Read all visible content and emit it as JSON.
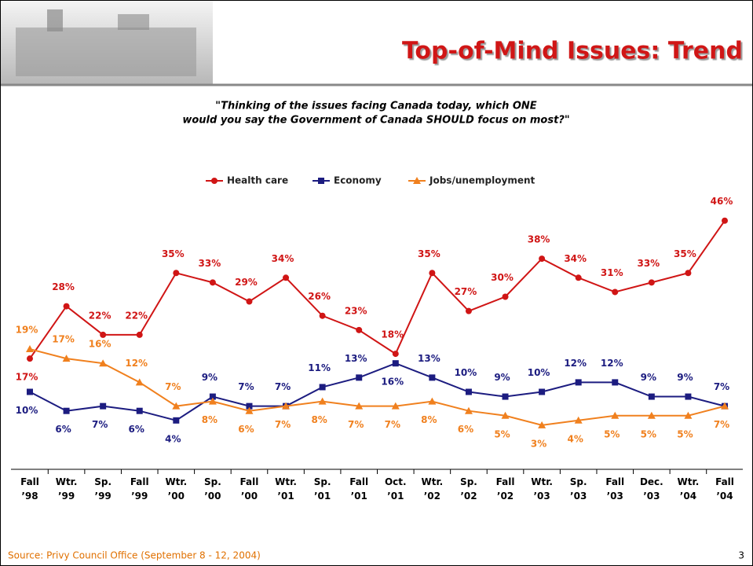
{
  "chart_data": {
    "type": "line",
    "title": "Top-of-Mind Issues: Trend",
    "subtitle": [
      "\"Thinking of the issues facing Canada today, which ONE",
      "would you say the Government of Canada SHOULD focus on most?\""
    ],
    "categories": [
      "Fall ’98",
      "Wtr. ’99",
      "Sp. ’99",
      "Fall ’99",
      "Wtr. ’00",
      "Sp. ’00",
      "Fall ’00",
      "Wtr. ’01",
      "Sp. ’01",
      "Fall ’01",
      "Oct. ’01",
      "Wtr. ’02",
      "Sp. ’02",
      "Fall ’02",
      "Wtr. ’03",
      "Sp. ’03",
      "Fall ’03",
      "Dec. ’03",
      "Wtr. ’04",
      "Fall ’04"
    ],
    "series": [
      {
        "name": "Health care",
        "color": "#d01515",
        "marker": "circle",
        "values": [
          17,
          28,
          22,
          22,
          35,
          33,
          29,
          34,
          26,
          23,
          18,
          35,
          27,
          30,
          38,
          34,
          31,
          33,
          35,
          46
        ],
        "value_labels": [
          "17%",
          "28%",
          "22%",
          "22%",
          "35%",
          "33%",
          "29%",
          "34%",
          "26%",
          "23%",
          "18%",
          "35%",
          "27%",
          "30%",
          "38%",
          "34%",
          "31%",
          "33%",
          "35%",
          "46%"
        ]
      },
      {
        "name": "Economy",
        "color": "#1c1c80",
        "marker": "square",
        "values": [
          10,
          6,
          7,
          6,
          4,
          9,
          7,
          7,
          11,
          13,
          16,
          13,
          10,
          9,
          10,
          12,
          12,
          9,
          9,
          7
        ],
        "value_labels": [
          "10%",
          "6%",
          "7%",
          "6%",
          "4%",
          "9%",
          "7%",
          "7%",
          "11%",
          "13%",
          "16%",
          "13%",
          "10%",
          "9%",
          "10%",
          "12%",
          "12%",
          "9%",
          "9%",
          "7%"
        ]
      },
      {
        "name": "Jobs/unemployment",
        "color": "#f0801e",
        "marker": "triangle",
        "values": [
          19,
          17,
          16,
          12,
          7,
          8,
          6,
          7,
          8,
          7,
          7,
          8,
          6,
          5,
          3,
          4,
          5,
          5,
          5,
          7
        ],
        "value_labels": [
          "19%",
          "17%",
          "16%",
          "12%",
          "7%",
          "8%",
          "6%",
          "7%",
          "8%",
          "7%",
          "7%",
          "8%",
          "6%",
          "5%",
          "3%",
          "4%",
          "5%",
          "5%",
          "5%",
          "7%"
        ]
      }
    ],
    "source": "Source: Privy Council Office (September 8 - 12, 2004)",
    "page_number": 3
  }
}
